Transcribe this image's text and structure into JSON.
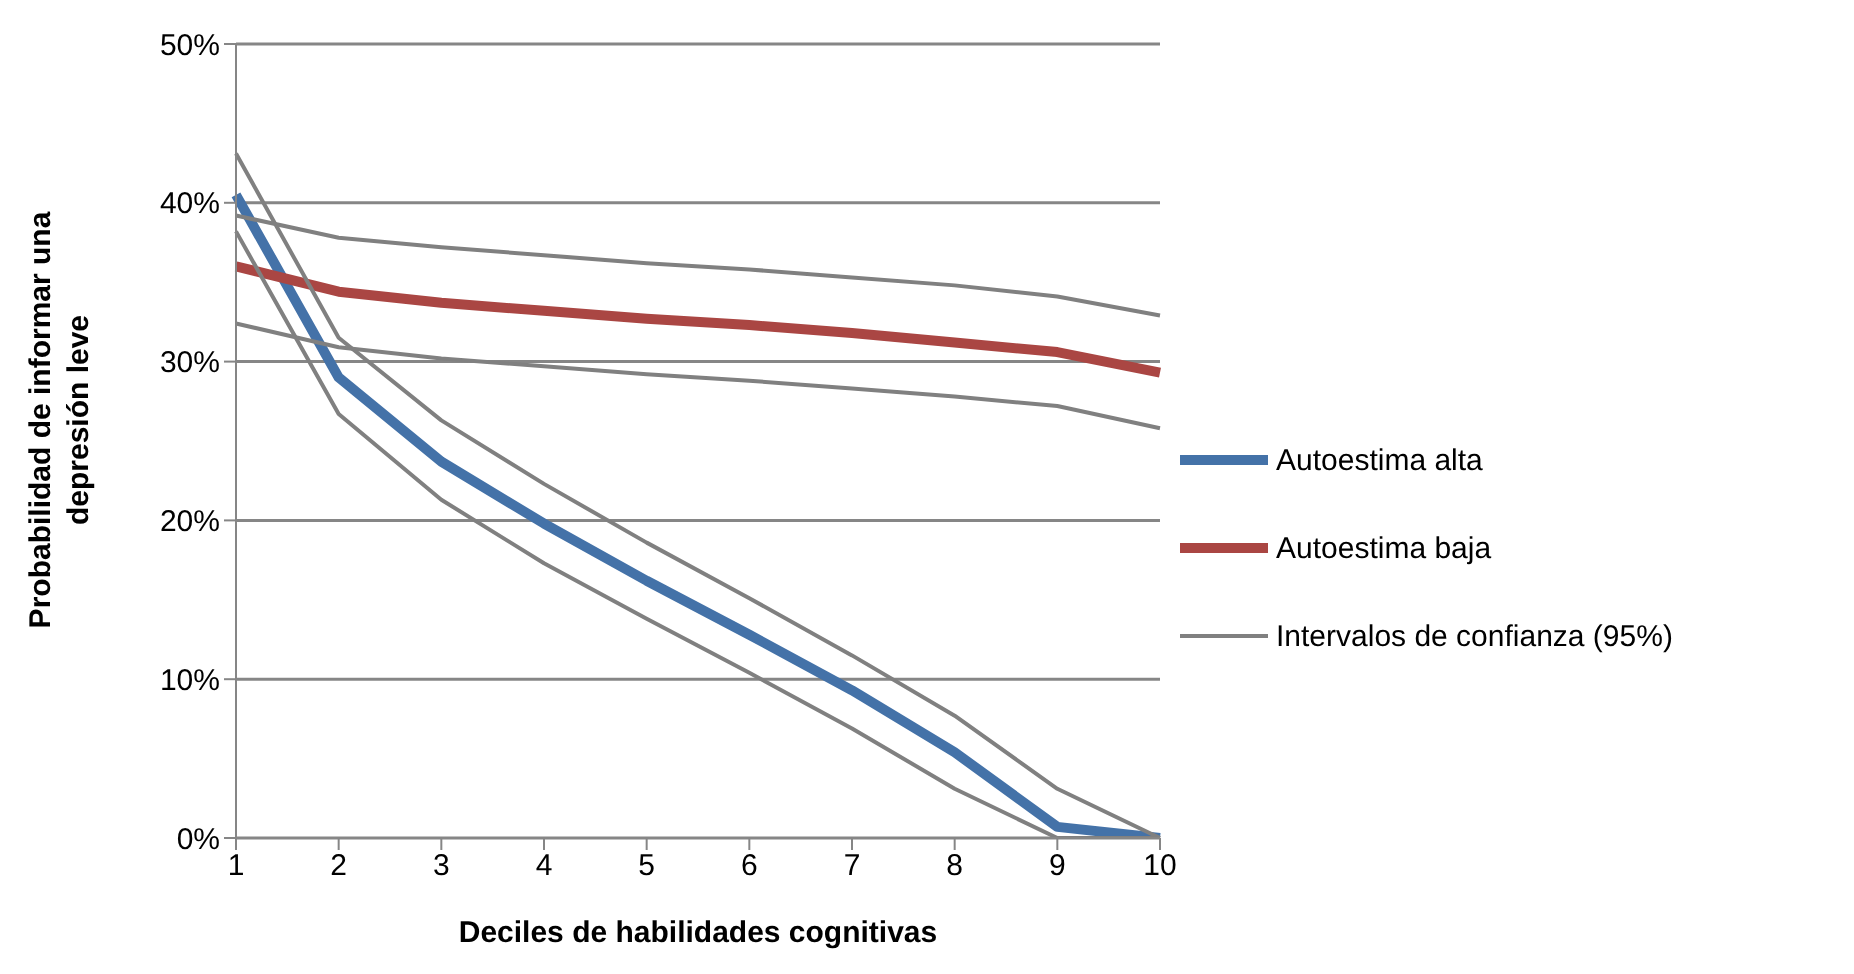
{
  "chart_data": {
    "type": "line",
    "xlabel": "Deciles de habilidades cognitivas",
    "ylabel": "Probabilidad de informar una depresión leve",
    "categories": [
      "1",
      "2",
      "3",
      "4",
      "5",
      "6",
      "7",
      "8",
      "9",
      "10"
    ],
    "series": [
      {
        "name": "Autoestima alta",
        "color": "#4472a8",
        "values": [
          40.5,
          29,
          23.7,
          19.8,
          16.2,
          12.8,
          9.3,
          5.4,
          0.7,
          0
        ]
      },
      {
        "name": "Autoestima baja",
        "color": "#aa4643",
        "values": [
          36,
          34.4,
          33.7,
          33.2,
          32.7,
          32.3,
          31.8,
          31.2,
          30.6,
          29.3
        ]
      },
      {
        "name": "Intervalos de confianza (95%)",
        "color": "#808080",
        "values": [
          43.1,
          31.5,
          26.3,
          22.3,
          18.6,
          15.1,
          11.5,
          7.7,
          3.1,
          0
        ]
      },
      {
        "color": "#808080",
        "values": [
          38.2,
          26.7,
          21.3,
          17.3,
          13.8,
          10.4,
          6.9,
          3.1,
          0,
          0
        ]
      },
      {
        "color": "#808080",
        "values": [
          39.2,
          37.8,
          37.2,
          36.7,
          36.2,
          35.8,
          35.3,
          34.8,
          34.1,
          32.9
        ]
      },
      {
        "color": "#808080",
        "values": [
          32.4,
          30.9,
          30.2,
          29.7,
          29.2,
          28.8,
          28.3,
          27.8,
          27.2,
          25.8
        ]
      }
    ],
    "ylim": [
      0,
      50
    ],
    "yticks": [
      {
        "value": 0,
        "label": "0%"
      },
      {
        "value": 10,
        "label": "10%"
      },
      {
        "value": 20,
        "label": "20%"
      },
      {
        "value": 30,
        "label": "30%"
      },
      {
        "value": 40,
        "label": "40%"
      },
      {
        "value": 50,
        "label": "50%"
      }
    ],
    "grid": "y",
    "legend": "right",
    "marker": "none",
    "line_style": "solid"
  }
}
